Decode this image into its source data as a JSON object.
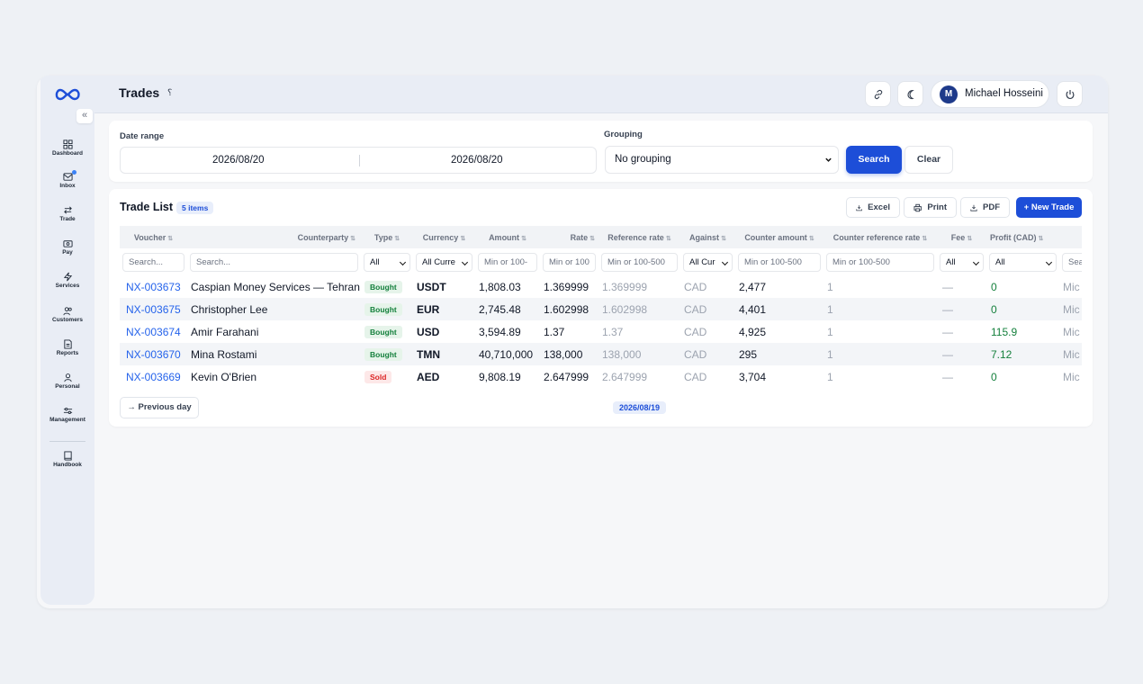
{
  "header": {
    "title": "Trades",
    "title_mark": "؟",
    "user": {
      "initial": "M",
      "name": "Michael Hosseini"
    }
  },
  "sidebar": {
    "collapse_glyph": "«",
    "items": [
      {
        "label": "Dashboard",
        "icon": "dashboard-icon"
      },
      {
        "label": "Inbox",
        "icon": "inbox-icon",
        "dot": true
      },
      {
        "label": "Trade",
        "icon": "swap-icon"
      },
      {
        "label": "Pay",
        "icon": "wallet-icon"
      },
      {
        "label": "Services",
        "icon": "lightning-icon"
      },
      {
        "label": "Customers",
        "icon": "users-icon"
      },
      {
        "label": "Reports",
        "icon": "report-icon"
      },
      {
        "label": "Personal",
        "icon": "user-icon"
      },
      {
        "label": "Management",
        "icon": "sliders-icon"
      },
      {
        "label": "Handbook",
        "icon": "book-icon"
      }
    ]
  },
  "filters": {
    "date_label": "Date range",
    "date_from": "2026/08/20",
    "date_to": "2026/08/20",
    "grouping_label": "Grouping",
    "grouping_value": "No grouping",
    "search_label": "Search",
    "clear_label": "Clear"
  },
  "list": {
    "title": "Trade List",
    "count": "5 items",
    "excel_label": "Excel",
    "print_label": "Print",
    "pdf_label": "PDF",
    "new_label": "+ New Trade",
    "prev_label": "→ Previous day",
    "current_date": "2026/08/19"
  },
  "table": {
    "sort_glyph": "⇅",
    "columns": [
      "Voucher",
      "Counterparty",
      "Type",
      "Currency",
      "Amount",
      "Rate",
      "Reference rate",
      "Against",
      "Counter amount",
      "Counter reference rate",
      "Fee",
      "Profit (CAD)"
    ],
    "filters": {
      "voucher": "Search...",
      "counterparty": "Search...",
      "type": "All",
      "currency": "All Curre",
      "amount": "Min or 100-",
      "rate": "Min or 100",
      "reference_rate": "Min or 100-500",
      "against": "All Cur",
      "counter_amount": "Min or 100-500",
      "counter_reference_rate": "Min or 100-500",
      "fee": "All",
      "profit": "All",
      "extra": "Sea"
    },
    "rows": [
      {
        "voucher": "NX-003673",
        "counterparty": "Caspian Money Services — Tehran",
        "type": "Bought",
        "currency": "USDT",
        "amount": "1,808.03",
        "rate": "1.369999",
        "reference_rate": "1.369999",
        "against": "CAD",
        "counter_amount": "2,477",
        "counter_reference_rate": "1",
        "fee": "—",
        "profit": "0",
        "extra": "Mic"
      },
      {
        "voucher": "NX-003675",
        "counterparty": "Christopher Lee",
        "type": "Bought",
        "currency": "EUR",
        "amount": "2,745.48",
        "rate": "1.602998",
        "reference_rate": "1.602998",
        "against": "CAD",
        "counter_amount": "4,401",
        "counter_reference_rate": "1",
        "fee": "—",
        "profit": "0",
        "extra": "Mic"
      },
      {
        "voucher": "NX-003674",
        "counterparty": "Amir Farahani",
        "type": "Bought",
        "currency": "USD",
        "amount": "3,594.89",
        "rate": "1.37",
        "reference_rate": "1.37",
        "against": "CAD",
        "counter_amount": "4,925",
        "counter_reference_rate": "1",
        "fee": "—",
        "profit": "115.9",
        "extra": "Mic"
      },
      {
        "voucher": "NX-003670",
        "counterparty": "Mina Rostami",
        "type": "Bought",
        "currency": "TMN",
        "amount": "40,710,000",
        "rate": "138,000",
        "reference_rate": "138,000",
        "against": "CAD",
        "counter_amount": "295",
        "counter_reference_rate": "1",
        "fee": "—",
        "profit": "7.12",
        "extra": "Mic"
      },
      {
        "voucher": "NX-003669",
        "counterparty": "Kevin O'Brien",
        "type": "Sold",
        "currency": "AED",
        "amount": "9,808.19",
        "rate": "2.647999",
        "reference_rate": "2.647999",
        "against": "CAD",
        "counter_amount": "3,704",
        "counter_reference_rate": "1",
        "fee": "—",
        "profit": "0",
        "extra": "Mic"
      }
    ]
  }
}
